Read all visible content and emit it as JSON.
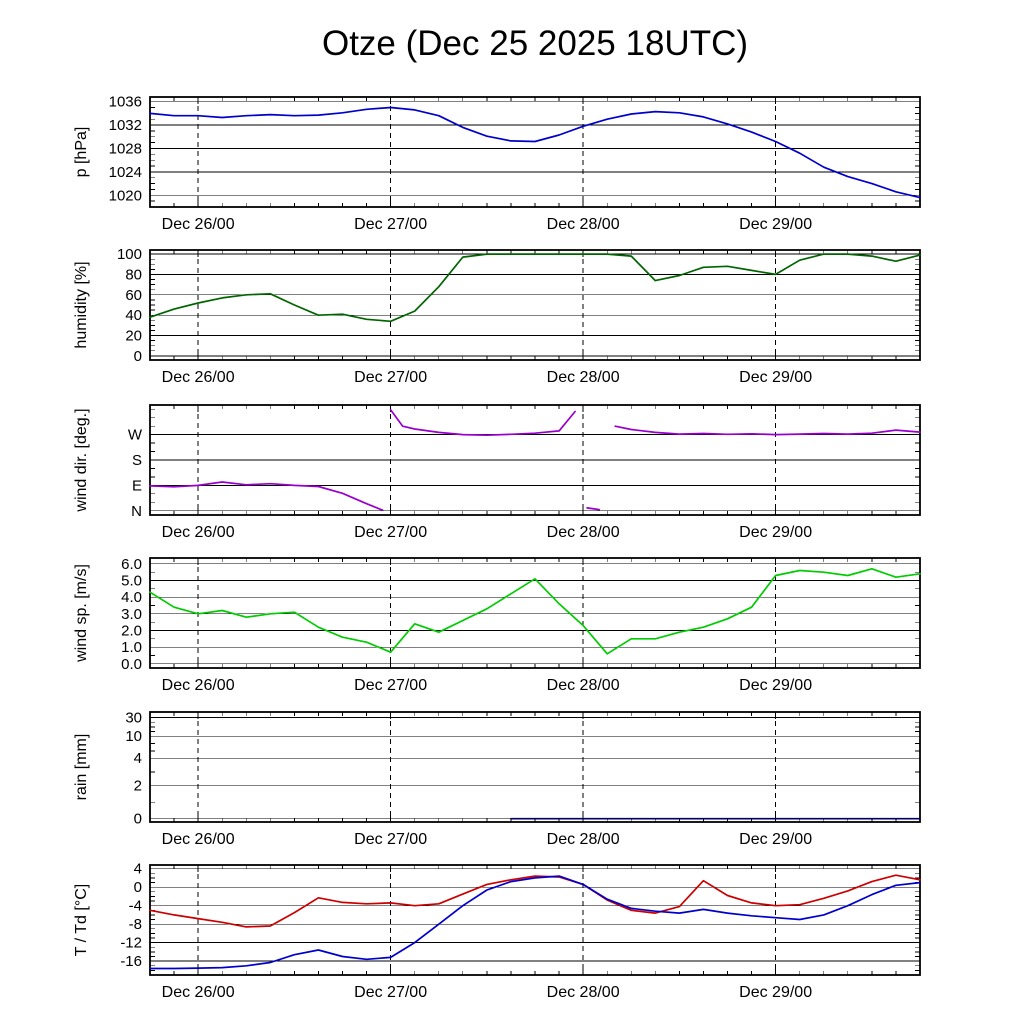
{
  "title": "Otze (Dec 25 2025 18UTC)",
  "x_axis": {
    "range_hours": [
      0,
      96
    ],
    "tick_hours": [
      6,
      30,
      54,
      78
    ],
    "tick_labels": [
      "Dec 26/00",
      "Dec 27/00",
      "Dec 28/00",
      "Dec 29/00"
    ],
    "minor_step_hours": 3
  },
  "sample_hours": [
    0,
    3,
    6,
    9,
    12,
    15,
    18,
    21,
    24,
    27,
    30,
    33,
    36,
    39,
    42,
    45,
    48,
    51,
    54,
    57,
    60,
    63,
    66,
    69,
    72,
    75,
    78,
    81,
    84,
    87,
    90,
    93,
    96
  ],
  "chart_data": [
    {
      "id": "pressure",
      "type": "line",
      "ylabel": "p [hPa]",
      "ylim": [
        1018,
        1036.8
      ],
      "yticks": [
        1020,
        1024,
        1028,
        1032,
        1036
      ],
      "minor_step": 1,
      "series": [
        {
          "name": "pressure",
          "color": "#0000cc",
          "values": [
            1034,
            1033.6,
            1033.6,
            1033.3,
            1033.6,
            1033.8,
            1033.6,
            1033.7,
            1034.1,
            1034.7,
            1035,
            1034.6,
            1033.6,
            1031.6,
            1030.1,
            1029.3,
            1029.2,
            1030.3,
            1031.8,
            1033,
            1033.9,
            1034.3,
            1034.1,
            1033.4,
            1032.2,
            1030.8,
            1029.2,
            1027.2,
            1024.8,
            1023.2,
            1022,
            1020.6,
            1019.6
          ]
        }
      ]
    },
    {
      "id": "humidity",
      "type": "line",
      "ylabel": "humidity [%]",
      "ylim": [
        -4,
        104
      ],
      "yticks": [
        0,
        20,
        40,
        60,
        80,
        100
      ],
      "minor_step": 5,
      "series": [
        {
          "name": "humidity",
          "color": "#006400",
          "values": [
            38,
            46,
            52,
            57,
            60,
            61,
            50,
            40,
            41,
            36,
            34,
            44,
            68,
            97,
            100,
            100,
            100,
            100,
            100,
            100,
            98,
            74,
            79,
            87,
            88,
            84,
            80,
            94,
            100,
            100,
            98,
            93,
            99
          ]
        }
      ]
    },
    {
      "id": "wind-direction",
      "type": "line",
      "ylabel": "wind dir. [deg.]",
      "ylim": [
        -15,
        375
      ],
      "yticks": [
        0,
        90,
        180,
        270
      ],
      "ytick_labels": [
        "N",
        "E",
        "S",
        "W"
      ],
      "minor_step": 30,
      "wrap_degrees": 180,
      "series": [
        {
          "name": "wind-direction",
          "color": "#9900cc",
          "x": [
            0,
            3,
            6,
            9,
            12,
            15,
            18,
            21,
            24,
            27,
            29,
            30,
            31.5,
            33,
            36,
            39,
            42,
            45,
            48,
            51,
            53,
            54.5,
            56,
            58,
            60,
            63,
            66,
            69,
            72,
            75,
            78,
            81,
            84,
            87,
            90,
            93,
            96
          ],
          "values": [
            88,
            85,
            90,
            102,
            92,
            96,
            90,
            86,
            62,
            25,
            2,
            358,
            300,
            290,
            278,
            270,
            268,
            271,
            275,
            283,
            352,
            10,
            4,
            300,
            288,
            278,
            272,
            274,
            271,
            273,
            270,
            272,
            274,
            272,
            275,
            286,
            279
          ]
        }
      ]
    },
    {
      "id": "wind-speed",
      "type": "line",
      "ylabel": "wind sp. [m/s]",
      "ylim": [
        -0.25,
        6.35
      ],
      "yticks": [
        0,
        1,
        2,
        3,
        4,
        5,
        6
      ],
      "ytick_labels": [
        "0.0",
        "1.0",
        "2.0",
        "3.0",
        "4.0",
        "5.0",
        "6.0"
      ],
      "minor_step": 0.5,
      "series": [
        {
          "name": "wind-speed",
          "color": "#00cc00",
          "values": [
            4.3,
            3.4,
            3,
            3.2,
            2.8,
            3,
            3.1,
            2.2,
            1.6,
            1.3,
            0.7,
            2.4,
            1.9,
            2.6,
            3.3,
            4.2,
            5.1,
            3.6,
            2.3,
            0.6,
            1.5,
            1.5,
            1.9,
            2.2,
            2.7,
            3.4,
            5.3,
            5.6,
            5.5,
            5.3,
            5.7,
            5.2,
            5.4
          ]
        }
      ]
    },
    {
      "id": "rain",
      "type": "line",
      "ylabel": "rain [mm]",
      "yticks": [
        0,
        2,
        4,
        10,
        30
      ],
      "ytick_labels": [
        "0",
        "2",
        "4",
        "10",
        "30"
      ],
      "yscale": {
        "values": [
          0,
          2,
          4,
          10,
          30
        ],
        "fracs": [
          0.03,
          0.33,
          0.58,
          0.78,
          0.95
        ]
      },
      "minor_values": [
        1,
        3,
        6,
        8,
        15,
        20,
        25
      ],
      "series": [
        {
          "name": "rain",
          "color": "#000066",
          "x": [
            45,
            48,
            51,
            54,
            57,
            60,
            63,
            66,
            69,
            72,
            75,
            78,
            81,
            84,
            87,
            90,
            93,
            96
          ],
          "values": [
            0,
            0,
            0,
            0,
            0,
            0,
            0,
            0,
            0,
            0,
            0,
            0,
            0,
            0,
            0,
            0,
            0,
            0
          ]
        }
      ]
    },
    {
      "id": "temperature",
      "type": "line",
      "ylabel": "T / Td [°C]",
      "ylim": [
        -19,
        4.8
      ],
      "yticks": [
        -16,
        -12,
        -8,
        -4,
        0,
        4
      ],
      "minor_step": 1,
      "series": [
        {
          "name": "temperature",
          "color": "#cc0000",
          "values": [
            -5,
            -6,
            -6.8,
            -7.6,
            -8.6,
            -8.4,
            -5.5,
            -2.3,
            -3.3,
            -3.6,
            -3.4,
            -4,
            -3.6,
            -1.5,
            0.6,
            1.6,
            2.4,
            2.2,
            0.6,
            -2.8,
            -5,
            -5.6,
            -4.2,
            1.4,
            -1.8,
            -3.4,
            -4,
            -3.8,
            -2.4,
            -0.8,
            1.2,
            2.6,
            1.6
          ]
        },
        {
          "name": "dewpoint",
          "color": "#0000cc",
          "values": [
            -17.6,
            -17.6,
            -17.5,
            -17.4,
            -17,
            -16.3,
            -14.6,
            -13.6,
            -15,
            -15.6,
            -15.2,
            -12,
            -8,
            -4,
            -0.6,
            1.2,
            2,
            2.4,
            0.6,
            -2.6,
            -4.6,
            -5.2,
            -5.6,
            -4.8,
            -5.6,
            -6.2,
            -6.6,
            -7,
            -6,
            -4,
            -1.6,
            0.4,
            1
          ]
        }
      ]
    }
  ]
}
